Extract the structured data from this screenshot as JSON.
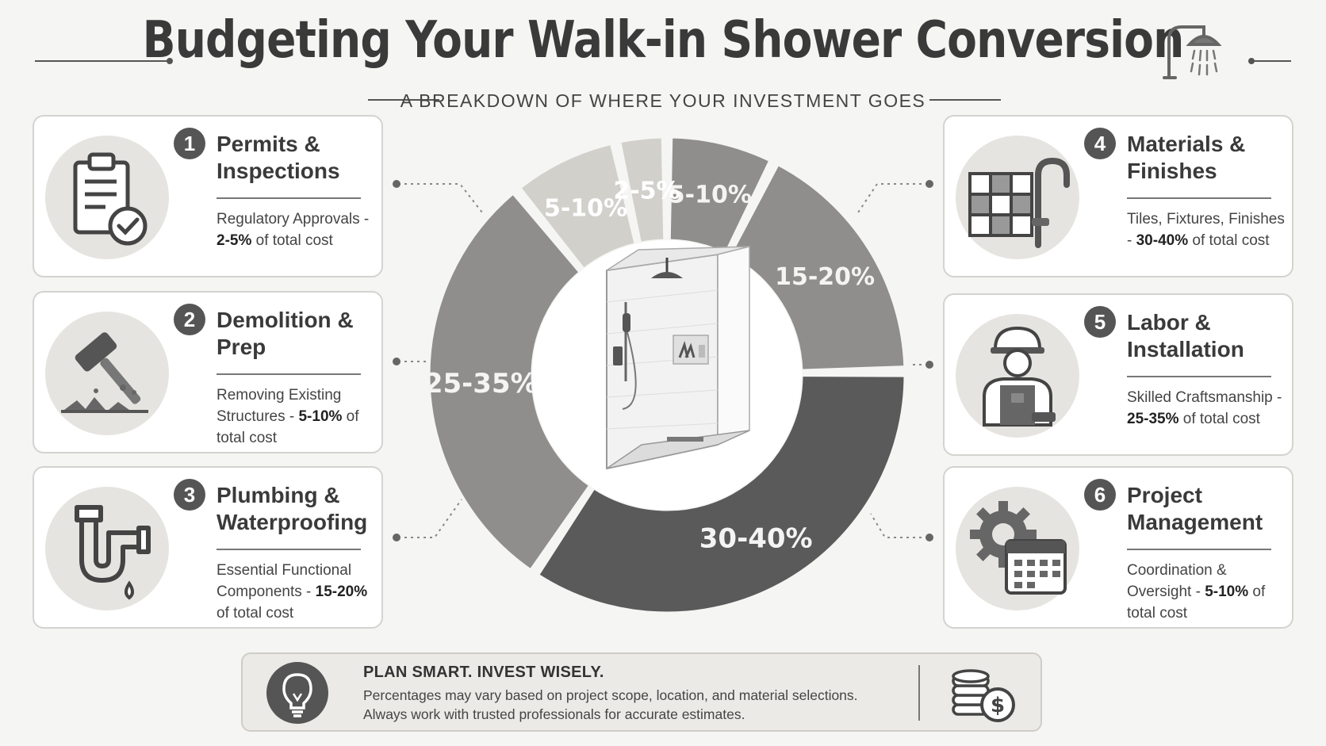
{
  "header": {
    "title": "Budgeting Your Walk-in Shower Conversion",
    "subtitle": "A BREAKDOWN OF WHERE YOUR INVESTMENT GOES"
  },
  "icons": {
    "header": "shower-head-icon",
    "cards": [
      "clipboard-check-icon",
      "hammer-icon",
      "pipe-icon",
      "tiles-faucet-icon",
      "worker-icon",
      "gear-calendar-icon"
    ],
    "center": "walk-in-shower-icon",
    "footer_left": "lightbulb-icon",
    "footer_right": "coins-dollar-icon"
  },
  "colors": {
    "background": "#f5f5f3",
    "slice_lightest": "#d2d0cb",
    "slice_light": "#b3b1ad",
    "slice_mid": "#8f8e8c",
    "slice_dark": "#5a5a5a"
  },
  "cards": [
    {
      "number": "1",
      "title": "Permits & Inspections",
      "desc_pre": "Regulatory Approvals - ",
      "desc_pct": "2-5%",
      "desc_post": " of total cost"
    },
    {
      "number": "2",
      "title": "Demolition & Prep",
      "desc_pre": "Removing Existing Structures - ",
      "desc_pct": "5-10%",
      "desc_post": " of total cost"
    },
    {
      "number": "3",
      "title": "Plumbing & Waterproofing",
      "desc_pre": "Essential Functional Components - ",
      "desc_pct": "15-20%",
      "desc_post": " of total cost"
    },
    {
      "number": "4",
      "title": "Materials & Finishes",
      "desc_pre": "Tiles, Fixtures, Finishes - ",
      "desc_pct": "30-40%",
      "desc_post": " of total cost"
    },
    {
      "number": "5",
      "title": "Labor & Installation",
      "desc_pre": "Skilled Craftsmanship - ",
      "desc_pct": "25-35%",
      "desc_post": " of total cost"
    },
    {
      "number": "6",
      "title": "Project Management",
      "desc_pre": "Coordination & Oversight - ",
      "desc_pct": "5-10%",
      "desc_post": " of total cost"
    }
  ],
  "chart_data": {
    "type": "pie",
    "donut": true,
    "start_angle_deg": 0,
    "slices": [
      {
        "label": "5-10%",
        "value": 7.5,
        "color": "#8f8e8c"
      },
      {
        "label": "15-20%",
        "value": 17.5,
        "color": "#8f8e8c"
      },
      {
        "label": "30-40%",
        "value": 35,
        "color": "#5a5a5a"
      },
      {
        "label": "25-35%",
        "value": 30,
        "color": "#8f8e8c"
      },
      {
        "label": "5-10%",
        "value": 7.5,
        "color": "#d2d0cb"
      },
      {
        "label": "2-5%",
        "value": 3.5,
        "color": "#d2d0cb"
      }
    ]
  },
  "footer": {
    "title": "PLAN SMART. INVEST WISELY.",
    "line1": "Percentages may vary based on project scope, location, and material selections.",
    "line2": "Always work with trusted professionals for accurate estimates."
  }
}
